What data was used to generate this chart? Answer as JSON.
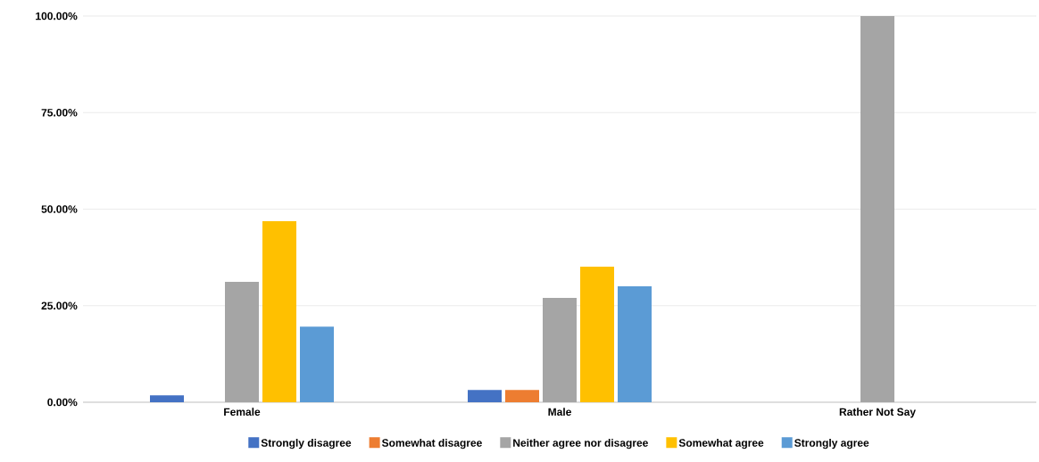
{
  "chart_data": {
    "type": "bar",
    "categories": [
      "Female",
      "Male",
      "Rather Not Say"
    ],
    "series": [
      {
        "name": "Strongly disagree",
        "color": "#4472c4",
        "values": [
          1.8,
          3.2,
          0
        ]
      },
      {
        "name": "Somewhat disagree",
        "color": "#ed7d31",
        "values": [
          0,
          3.2,
          0
        ]
      },
      {
        "name": "Neither agree nor disagree",
        "color": "#a5a5a5",
        "values": [
          31.2,
          27.0,
          100
        ]
      },
      {
        "name": "Somewhat agree",
        "color": "#ffc000",
        "values": [
          46.9,
          35.1,
          0
        ]
      },
      {
        "name": "Strongly agree",
        "color": "#5b9bd5",
        "values": [
          19.6,
          30.0,
          0
        ]
      }
    ],
    "ylim": [
      0,
      100
    ],
    "yticks": [
      {
        "value": 0,
        "label": "0.00%"
      },
      {
        "value": 25,
        "label": "25.00%"
      },
      {
        "value": 50,
        "label": "50.00%"
      },
      {
        "value": 75,
        "label": "75.00%"
      },
      {
        "value": 100,
        "label": "100.00%"
      }
    ],
    "grid": "y",
    "legend": "bottom"
  }
}
